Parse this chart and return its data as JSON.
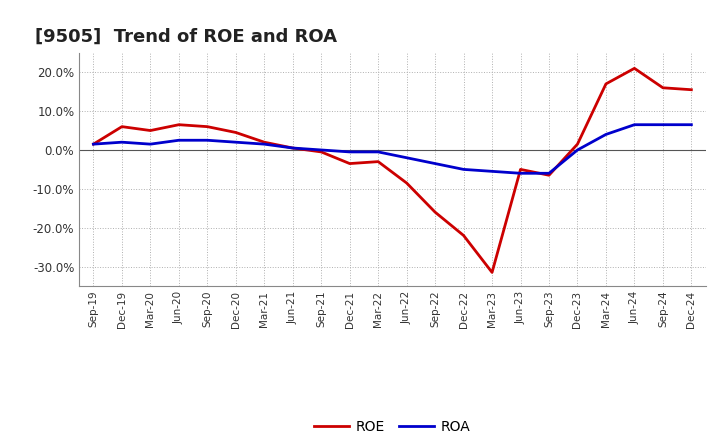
{
  "title": "[9505]  Trend of ROE and ROA",
  "labels": [
    "Sep-19",
    "Dec-19",
    "Mar-20",
    "Jun-20",
    "Sep-20",
    "Dec-20",
    "Mar-21",
    "Jun-21",
    "Sep-21",
    "Dec-21",
    "Mar-22",
    "Jun-22",
    "Sep-22",
    "Dec-22",
    "Mar-23",
    "Jun-23",
    "Sep-23",
    "Dec-23",
    "Mar-24",
    "Jun-24",
    "Sep-24",
    "Dec-24"
  ],
  "roe": [
    1.5,
    6.0,
    5.0,
    6.5,
    6.0,
    4.5,
    2.0,
    0.5,
    -0.5,
    -3.5,
    -3.0,
    -8.5,
    -16.0,
    -22.0,
    -31.5,
    -5.0,
    -6.5,
    1.5,
    17.0,
    21.0,
    16.0,
    15.5
  ],
  "roa": [
    1.5,
    2.0,
    1.5,
    2.5,
    2.5,
    2.0,
    1.5,
    0.5,
    0.0,
    -0.5,
    -0.5,
    -2.0,
    -3.5,
    -5.0,
    -5.5,
    -6.0,
    -6.0,
    0.0,
    4.0,
    6.5,
    6.5,
    6.5
  ],
  "roe_color": "#cc0000",
  "roa_color": "#0000cc",
  "background_color": "#ffffff",
  "grid_color": "#b0b0b0",
  "ylim": [
    -35,
    25
  ],
  "yticks": [
    -30,
    -20,
    -10,
    0,
    10,
    20
  ],
  "title_fontsize": 13,
  "linewidth": 2.0
}
